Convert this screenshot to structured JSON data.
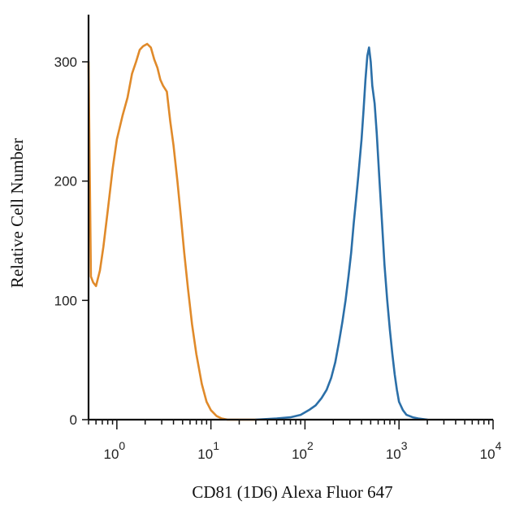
{
  "chart_data": {
    "type": "line",
    "title": "",
    "xlabel": "CD81 (1D6) Alexa Fluor 647",
    "ylabel": "Relative Cell Number",
    "x_scale": "log",
    "xlim": [
      0.5,
      10000
    ],
    "ylim": [
      0,
      320
    ],
    "x_ticks": [
      {
        "value": 1,
        "base": "10",
        "exp": "0"
      },
      {
        "value": 10,
        "base": "10",
        "exp": "1"
      },
      {
        "value": 100,
        "base": "10",
        "exp": "2"
      },
      {
        "value": 1000,
        "base": "10",
        "exp": "3"
      },
      {
        "value": 10000,
        "base": "10",
        "exp": "4"
      }
    ],
    "y_ticks": [
      {
        "value": 0,
        "label": "0"
      },
      {
        "value": 100,
        "label": "100"
      },
      {
        "value": 200,
        "label": "200"
      },
      {
        "value": 300,
        "label": "300"
      }
    ],
    "grid": false,
    "series": [
      {
        "color": "#e08a2a",
        "x": [
          0.5,
          0.53,
          0.56,
          0.6,
          0.66,
          0.72,
          0.8,
          0.9,
          1.0,
          1.15,
          1.3,
          1.45,
          1.6,
          1.75,
          1.9,
          2.1,
          2.3,
          2.5,
          2.7,
          2.9,
          3.1,
          3.4,
          3.7,
          4.0,
          4.4,
          4.8,
          5.2,
          5.7,
          6.3,
          7.0,
          8.0,
          9.0,
          10.0,
          11.5,
          13.0,
          15.0,
          20.0,
          30.0
        ],
        "y": [
          300,
          120,
          115,
          112,
          125,
          145,
          175,
          210,
          235,
          255,
          270,
          290,
          300,
          310,
          313,
          315,
          312,
          302,
          295,
          285,
          280,
          275,
          250,
          230,
          200,
          170,
          140,
          110,
          80,
          55,
          30,
          15,
          8,
          3,
          1,
          0,
          0,
          0
        ]
      },
      {
        "color": "#2b6fa8",
        "x": [
          30,
          50,
          70,
          90,
          110,
          130,
          150,
          170,
          190,
          210,
          230,
          250,
          270,
          290,
          310,
          330,
          350,
          370,
          400,
          420,
          440,
          460,
          480,
          500,
          520,
          550,
          580,
          620,
          660,
          700,
          750,
          800,
          850,
          900,
          950,
          1000,
          1100,
          1200,
          1400,
          1600,
          2000
        ],
        "y": [
          0,
          1,
          2,
          4,
          8,
          12,
          18,
          25,
          35,
          48,
          65,
          82,
          100,
          120,
          140,
          165,
          185,
          205,
          235,
          260,
          285,
          305,
          312,
          300,
          280,
          265,
          240,
          200,
          165,
          130,
          100,
          75,
          55,
          38,
          25,
          15,
          8,
          4,
          2,
          1,
          0
        ]
      }
    ]
  }
}
